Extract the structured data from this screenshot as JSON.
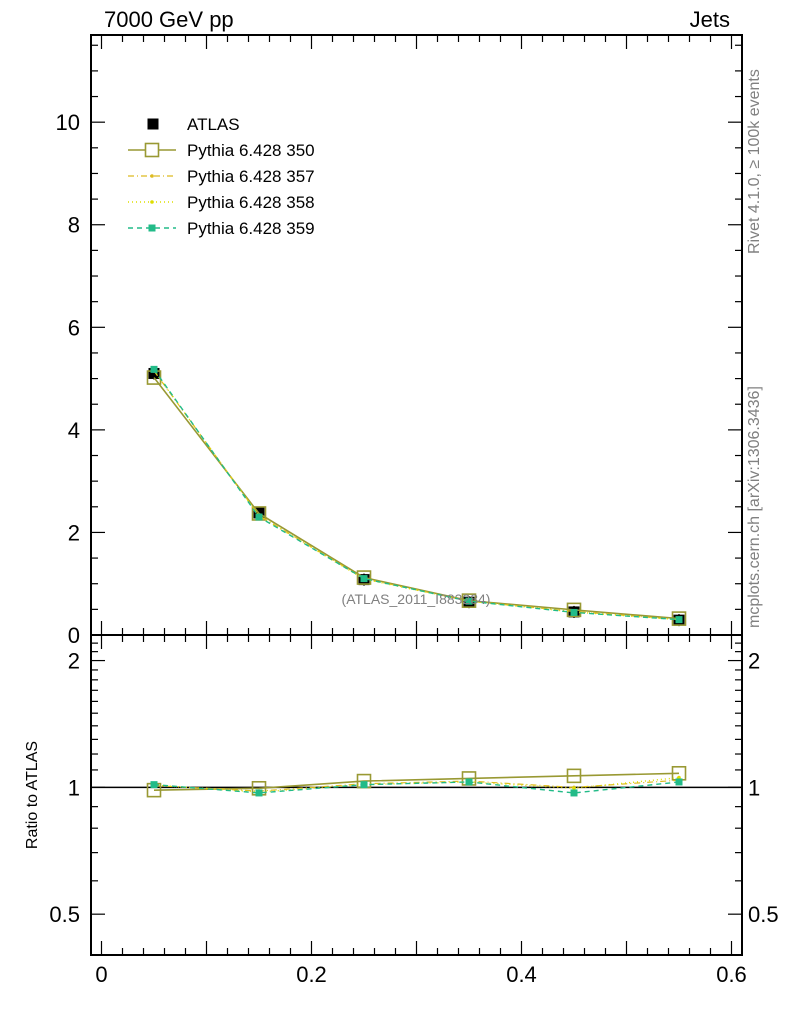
{
  "header": {
    "left": "7000 GeV pp",
    "right": "Jets"
  },
  "side": {
    "rivet": "Rivet 4.1.0, ≥ 100k events",
    "mcplots": "mcplots.cern.ch [arXiv:1306.3436]"
  },
  "analysis_label": "(ATLAS_2011_I883284)",
  "colors": {
    "atlas": "#000000",
    "p350": "#999933",
    "p357": "#ddbb22",
    "p358": "#dddd00",
    "p359": "#22bb88",
    "label_grey": "#808080"
  },
  "chart_data": {
    "type": "line",
    "x": [
      0.05,
      0.15,
      0.25,
      0.35,
      0.45,
      0.55
    ],
    "xlim": [
      -0.01,
      0.61
    ],
    "xticks": [
      "0",
      "0.2",
      "0.4",
      "0.6"
    ],
    "xtick_values": [
      0,
      0.2,
      0.4,
      0.6
    ],
    "main": {
      "ylim": [
        0,
        11.7
      ],
      "yticks": [
        "0",
        "2",
        "4",
        "6",
        "8",
        "10"
      ],
      "ytick_values": [
        0,
        2,
        4,
        6,
        8,
        10
      ],
      "series": [
        {
          "name": "ATLAS",
          "key": "atlas",
          "values": [
            5.1,
            2.38,
            1.08,
            0.64,
            0.45,
            0.29
          ]
        },
        {
          "name": "Pythia 6.428 350",
          "key": "p350",
          "values": [
            5.02,
            2.37,
            1.12,
            0.67,
            0.49,
            0.32
          ]
        },
        {
          "name": "Pythia 6.428 357",
          "key": "p357",
          "values": [
            5.15,
            2.33,
            1.1,
            0.66,
            0.46,
            0.3
          ]
        },
        {
          "name": "Pythia 6.428 358",
          "key": "p358",
          "values": [
            5.16,
            2.32,
            1.09,
            0.66,
            0.45,
            0.3
          ]
        },
        {
          "name": "Pythia 6.428 359",
          "key": "p359",
          "values": [
            5.18,
            2.3,
            1.1,
            0.66,
            0.44,
            0.3
          ]
        }
      ]
    },
    "ratio": {
      "ylabel": "Ratio to ATLAS",
      "ylim_log": [
        0.4,
        2.3
      ],
      "yticks": [
        "0.5",
        "1",
        "2"
      ],
      "ytick_values": [
        0.5,
        1,
        2
      ],
      "series": [
        {
          "name": "Pythia 6.428 350",
          "key": "p350",
          "values": [
            0.985,
            0.995,
            1.035,
            1.05,
            1.065,
            1.08
          ]
        },
        {
          "name": "Pythia 6.428 357",
          "key": "p357",
          "values": [
            1.01,
            0.98,
            1.02,
            1.035,
            1.0,
            1.04
          ]
        },
        {
          "name": "Pythia 6.428 358",
          "key": "p358",
          "values": [
            1.012,
            0.975,
            1.015,
            1.03,
            0.995,
            1.055
          ]
        },
        {
          "name": "Pythia 6.428 359",
          "key": "p359",
          "values": [
            1.015,
            0.97,
            1.015,
            1.03,
            0.97,
            1.03
          ]
        }
      ]
    }
  }
}
